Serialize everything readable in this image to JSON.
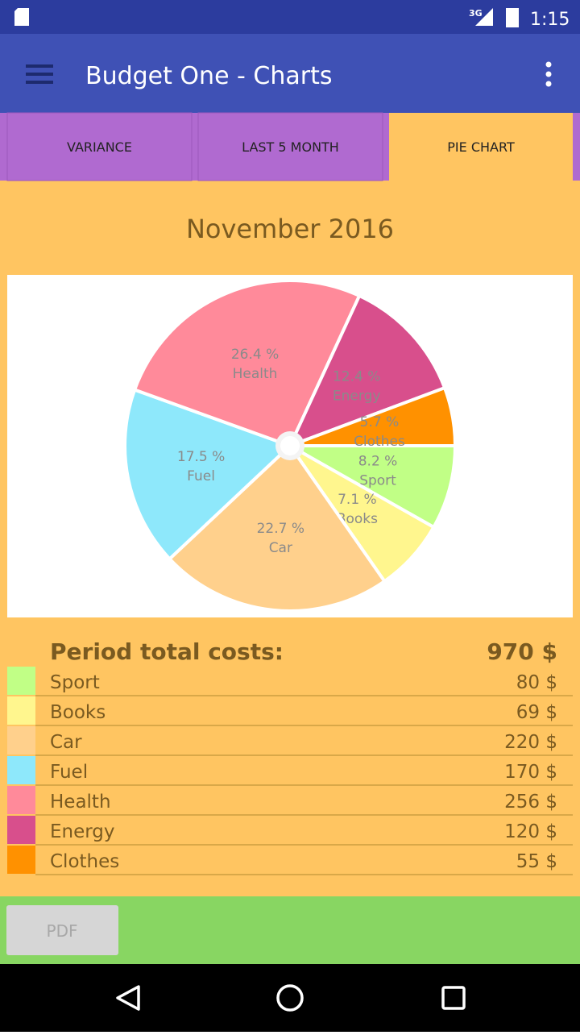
{
  "status_bar": {
    "network": "3G",
    "time": "1:15"
  },
  "app_bar": {
    "title": "Budget One - Charts"
  },
  "tabs": [
    "VARIANCE",
    "LAST 5 MONTH",
    "PIE CHART"
  ],
  "chart_data": {
    "type": "pie",
    "title": "November 2016",
    "categories": [
      "Sport",
      "Books",
      "Car",
      "Fuel",
      "Health",
      "Energy",
      "Clothes"
    ],
    "values": [
      8.2,
      7.1,
      22.7,
      17.5,
      26.4,
      12.4,
      5.7
    ],
    "value_labels": [
      "8.2 %",
      "7.1 %",
      "22.7 %",
      "17.5 %",
      "26.4 %",
      "12.4 %",
      "5.7 %"
    ],
    "colors": [
      "#c1ff86",
      "#fff68e",
      "#ffd08c",
      "#8ee8fb",
      "#ff8a9a",
      "#d84f8c",
      "#ff9100"
    ]
  },
  "summary": {
    "label": "Period total costs:",
    "total": "970 $",
    "rows": [
      [
        "Sport",
        "80 $"
      ],
      [
        "Books",
        "69 $"
      ],
      [
        "Car",
        "220 $"
      ],
      [
        "Fuel",
        "170 $"
      ],
      [
        "Health",
        "256 $"
      ],
      [
        "Energy",
        "120 $"
      ],
      [
        "Clothes",
        "55 $"
      ]
    ]
  },
  "footer": {
    "button": "PDF"
  }
}
